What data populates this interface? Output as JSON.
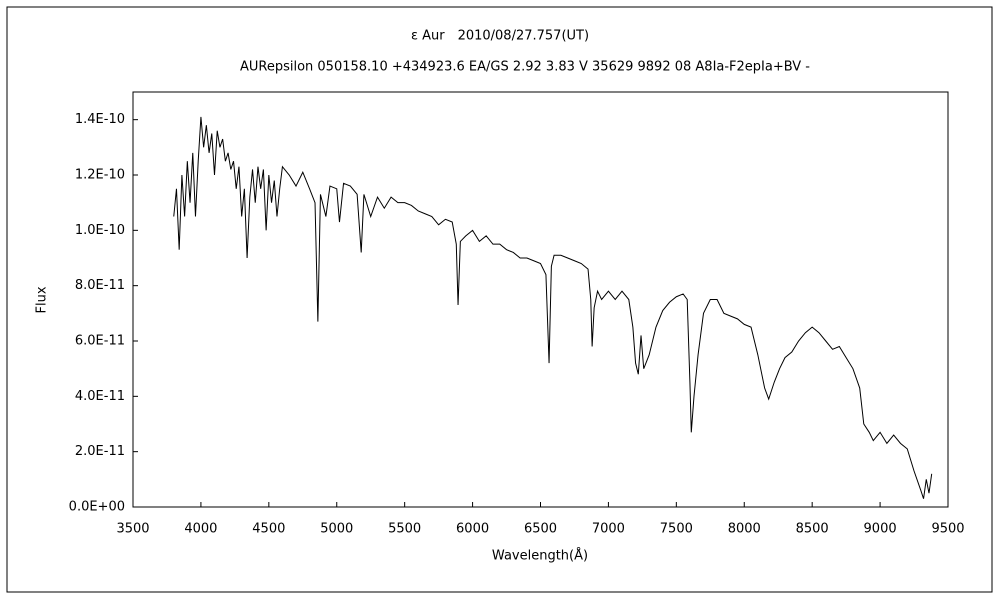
{
  "chart_data": {
    "type": "line",
    "title": "ε Aur　2010/08/27.757(UT)",
    "subtitle": "AURepsilon 050158.10 +434923.6 EA/GS 2.92 3.83 V 35629 9892 08 A8Ia-F2epIa+BV -",
    "xlabel": "Wavelength(Å)",
    "ylabel": "Flux",
    "xlim": [
      3500,
      9500
    ],
    "xticks": [
      3500,
      4000,
      4500,
      5000,
      5500,
      6000,
      6500,
      7000,
      7500,
      8000,
      8500,
      9000,
      9500
    ],
    "ylim": [
      0,
      1.5e-10
    ],
    "yticks": [
      {
        "value": 0,
        "label": "0.0E+00"
      },
      {
        "value": 2e-11,
        "label": "2.0E-11"
      },
      {
        "value": 4e-11,
        "label": "4.0E-11"
      },
      {
        "value": 6e-11,
        "label": "6.0E-11"
      },
      {
        "value": 8e-11,
        "label": "8.0E-11"
      },
      {
        "value": 1e-10,
        "label": "1.0E-10"
      },
      {
        "value": 1.2e-10,
        "label": "1.2E-10"
      },
      {
        "value": 1.4e-10,
        "label": "1.4E-10"
      }
    ],
    "grid": false,
    "color": "#000000",
    "x": [
      3800,
      3820,
      3840,
      3860,
      3880,
      3900,
      3920,
      3940,
      3960,
      3980,
      4000,
      4020,
      4040,
      4060,
      4080,
      4100,
      4120,
      4140,
      4160,
      4180,
      4200,
      4220,
      4240,
      4260,
      4280,
      4300,
      4320,
      4340,
      4360,
      4380,
      4400,
      4420,
      4440,
      4460,
      4480,
      4500,
      4520,
      4540,
      4560,
      4580,
      4600,
      4650,
      4700,
      4750,
      4800,
      4840,
      4861,
      4880,
      4920,
      4950,
      5000,
      5020,
      5050,
      5100,
      5150,
      5180,
      5200,
      5250,
      5300,
      5350,
      5400,
      5450,
      5500,
      5550,
      5600,
      5650,
      5700,
      5750,
      5800,
      5850,
      5880,
      5893,
      5910,
      5950,
      6000,
      6050,
      6100,
      6150,
      6200,
      6250,
      6300,
      6350,
      6400,
      6450,
      6500,
      6540,
      6563,
      6580,
      6600,
      6650,
      6700,
      6750,
      6800,
      6850,
      6870,
      6880,
      6895,
      6920,
      6950,
      7000,
      7050,
      7100,
      7150,
      7180,
      7200,
      7220,
      7240,
      7260,
      7300,
      7350,
      7400,
      7450,
      7500,
      7550,
      7580,
      7600,
      7610,
      7630,
      7660,
      7700,
      7750,
      7800,
      7850,
      7900,
      7950,
      8000,
      8050,
      8100,
      8150,
      8180,
      8220,
      8260,
      8300,
      8350,
      8400,
      8450,
      8500,
      8550,
      8600,
      8650,
      8700,
      8750,
      8800,
      8850,
      8880,
      8920,
      8950,
      9000,
      9050,
      9100,
      9150,
      9200,
      9250,
      9300,
      9320,
      9340,
      9360,
      9380
    ],
    "values": [
      1.05e-10,
      1.15e-10,
      9.3e-11,
      1.2e-10,
      1.05e-10,
      1.25e-10,
      1.1e-10,
      1.28e-10,
      1.05e-10,
      1.25e-10,
      1.41e-10,
      1.3e-10,
      1.38e-10,
      1.28e-10,
      1.35e-10,
      1.2e-10,
      1.36e-10,
      1.3e-10,
      1.33e-10,
      1.25e-10,
      1.28e-10,
      1.22e-10,
      1.25e-10,
      1.15e-10,
      1.23e-10,
      1.05e-10,
      1.15e-10,
      9e-11,
      1.12e-10,
      1.22e-10,
      1.1e-10,
      1.23e-10,
      1.15e-10,
      1.22e-10,
      1e-10,
      1.2e-10,
      1.1e-10,
      1.18e-10,
      1.05e-10,
      1.15e-10,
      1.23e-10,
      1.2e-10,
      1.16e-10,
      1.21e-10,
      1.15e-10,
      1.1e-10,
      6.7e-11,
      1.13e-10,
      1.05e-10,
      1.16e-10,
      1.15e-10,
      1.03e-10,
      1.17e-10,
      1.16e-10,
      1.13e-10,
      9.2e-11,
      1.13e-10,
      1.05e-10,
      1.12e-10,
      1.08e-10,
      1.12e-10,
      1.1e-10,
      1.1e-10,
      1.09e-10,
      1.07e-10,
      1.06e-10,
      1.05e-10,
      1.02e-10,
      1.04e-10,
      1.03e-10,
      9.5e-11,
      7.3e-11,
      9.6e-11,
      9.8e-11,
      1e-10,
      9.6e-11,
      9.8e-11,
      9.5e-11,
      9.5e-11,
      9.3e-11,
      9.2e-11,
      9e-11,
      9e-11,
      8.9e-11,
      8.8e-11,
      8.4e-11,
      5.2e-11,
      8.7e-11,
      9.1e-11,
      9.1e-11,
      9e-11,
      8.9e-11,
      8.8e-11,
      8.6e-11,
      7.5e-11,
      5.8e-11,
      7.2e-11,
      7.8e-11,
      7.5e-11,
      7.8e-11,
      7.5e-11,
      7.8e-11,
      7.5e-11,
      6.5e-11,
      5.2e-11,
      4.8e-11,
      6.2e-11,
      5e-11,
      5.5e-11,
      6.5e-11,
      7.1e-11,
      7.4e-11,
      7.6e-11,
      7.7e-11,
      7.5e-11,
      4.5e-11,
      2.7e-11,
      4e-11,
      5.5e-11,
      7e-11,
      7.5e-11,
      7.5e-11,
      7e-11,
      6.9e-11,
      6.8e-11,
      6.6e-11,
      6.5e-11,
      5.5e-11,
      4.3e-11,
      3.9e-11,
      4.5e-11,
      5e-11,
      5.4e-11,
      5.6e-11,
      6e-11,
      6.3e-11,
      6.5e-11,
      6.3e-11,
      6e-11,
      5.7e-11,
      5.8e-11,
      5.4e-11,
      5e-11,
      4.3e-11,
      3e-11,
      2.7e-11,
      2.4e-11,
      2.7e-11,
      2.3e-11,
      2.6e-11,
      2.3e-11,
      2.1e-11,
      1.3e-11,
      6e-12,
      3e-12,
      1e-11,
      5e-12,
      1.2e-11
    ]
  }
}
